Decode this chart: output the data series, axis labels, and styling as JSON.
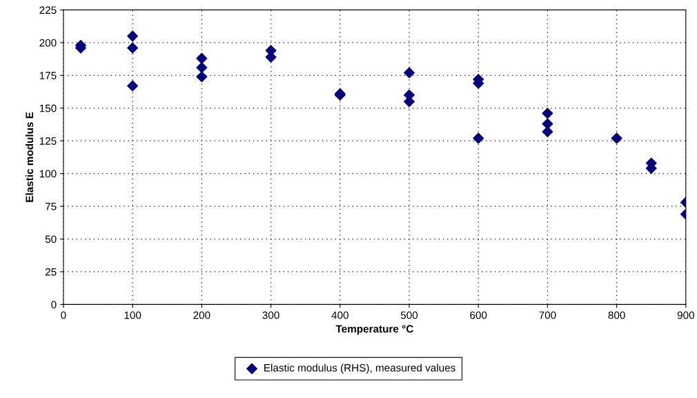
{
  "chart_data": {
    "type": "scatter",
    "xlabel": "Temperature °C",
    "ylabel": "Elastic modulus E",
    "series": [
      {
        "name": "Elastic modulus (RHS), measured values",
        "color": "#000080",
        "x": [
          25,
          25,
          100,
          100,
          100,
          200,
          200,
          200,
          300,
          300,
          400,
          400,
          500,
          500,
          500,
          600,
          600,
          600,
          700,
          700,
          700,
          800,
          850,
          850,
          900,
          900
        ],
        "values": [
          198,
          196,
          205,
          196,
          167,
          188,
          181,
          174,
          194,
          189,
          161,
          160,
          177,
          160,
          155,
          172,
          169,
          127,
          146,
          138,
          132,
          127,
          108,
          104,
          78,
          69
        ]
      }
    ],
    "xlim": [
      0,
      900
    ],
    "xticks": [
      0,
      100,
      200,
      300,
      400,
      500,
      600,
      700,
      800,
      900
    ],
    "ylim": [
      0,
      225
    ],
    "yticks": [
      0,
      25,
      50,
      75,
      100,
      125,
      150,
      175,
      200,
      225
    ],
    "grid": true,
    "legend": "bottom",
    "marker": "diamond"
  }
}
